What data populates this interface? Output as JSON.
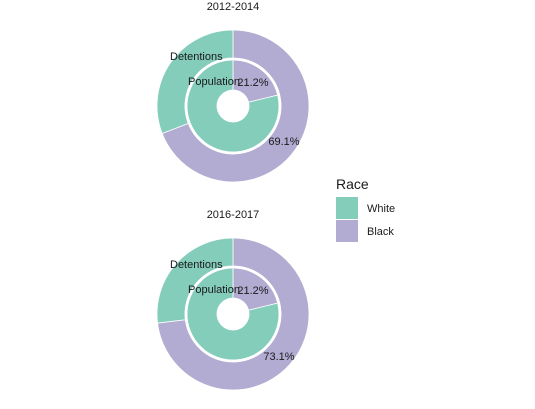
{
  "chart_data": {
    "type": "pie",
    "variant": "nested-donut",
    "outer_ring": "Detentions",
    "inner_ring": "Population",
    "panels": [
      {
        "title": "2012-2014",
        "rings": [
          {
            "name": "Detentions",
            "slices": [
              {
                "label": "White",
                "value": 30.9
              },
              {
                "label": "Black",
                "value": 69.1
              }
            ],
            "shown_label": "69.1%"
          },
          {
            "name": "Population",
            "slices": [
              {
                "label": "White",
                "value": 78.8
              },
              {
                "label": "Black",
                "value": 21.2
              }
            ],
            "shown_label": "21.2%"
          }
        ]
      },
      {
        "title": "2016-2017",
        "rings": [
          {
            "name": "Detentions",
            "slices": [
              {
                "label": "White",
                "value": 26.9
              },
              {
                "label": "Black",
                "value": 73.1
              }
            ],
            "shown_label": "73.1%"
          },
          {
            "name": "Population",
            "slices": [
              {
                "label": "White",
                "value": 78.8
              },
              {
                "label": "Black",
                "value": 21.2
              }
            ],
            "shown_label": "21.2%"
          }
        ]
      }
    ],
    "legend": {
      "title": "Race",
      "position": "right",
      "items": [
        {
          "label": "White",
          "color": "#84cdbb"
        },
        {
          "label": "Black",
          "color": "#b2abd2"
        }
      ]
    }
  }
}
